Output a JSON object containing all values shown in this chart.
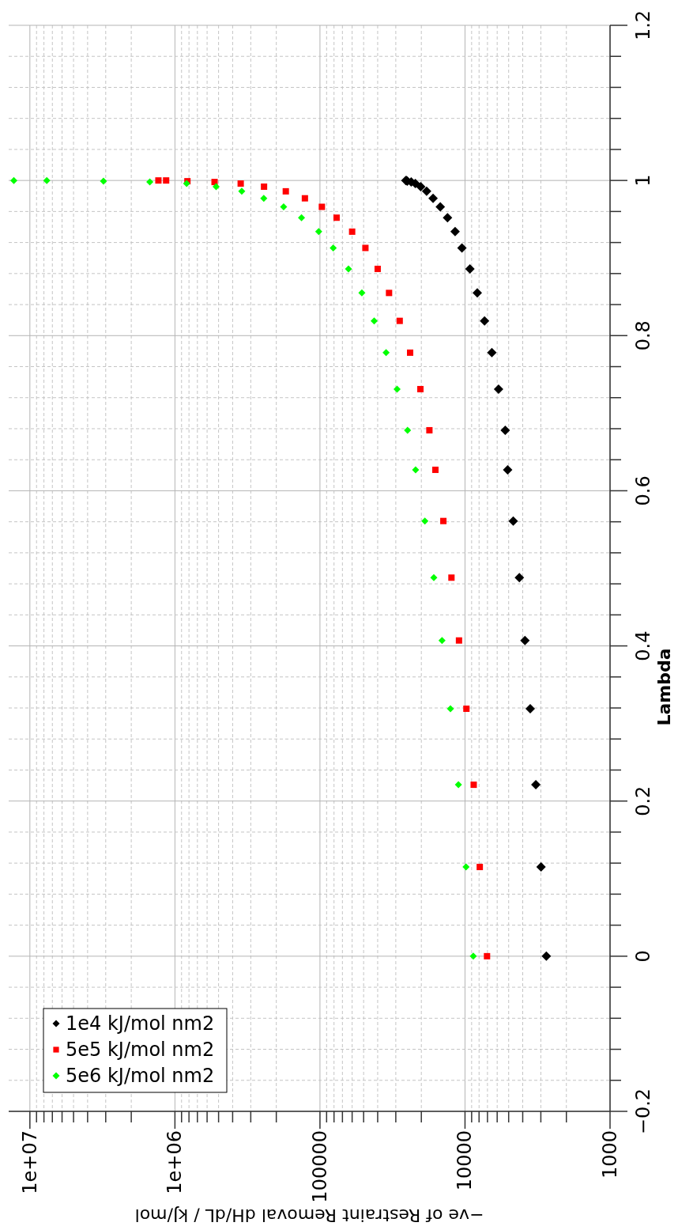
{
  "chart_data": {
    "type": "scatter",
    "xlabel": "−ve of Restraint Removal dH/dL / kJ/mol",
    "ylabel": "Lambda",
    "series": [
      {
        "name": "1e4 kJ/mol nm2",
        "color": "#000000",
        "marker": "diamond",
        "x": [
          25600,
          25300,
          25000,
          23500,
          22000,
          20200,
          18400,
          16600,
          14800,
          13200,
          11700,
          10500,
          9250,
          8230,
          7330,
          6530,
          5870,
          5280,
          5080,
          4650,
          4220,
          3860,
          3550,
          3250,
          2990,
          2750
        ],
        "values": [
          1.0,
          1.0,
          0.999,
          0.998,
          0.996,
          0.992,
          0.986,
          0.977,
          0.966,
          0.952,
          0.934,
          0.913,
          0.886,
          0.855,
          0.819,
          0.778,
          0.731,
          0.678,
          0.627,
          0.561,
          0.488,
          0.407,
          0.319,
          0.221,
          0.115,
          0
        ]
      },
      {
        "name": "5e5 kJ/mol nm2",
        "color": "#ff0000",
        "marker": "square",
        "x": [
          1300000,
          1150000,
          820000,
          533000,
          352000,
          243000,
          172000,
          127000,
          97000,
          76800,
          60000,
          48600,
          40000,
          33400,
          28200,
          23900,
          20300,
          17600,
          16000,
          14100,
          12400,
          11000,
          9780,
          8710,
          7910,
          7050
        ],
        "values": [
          1.0,
          1.0,
          0.999,
          0.998,
          0.996,
          0.992,
          0.986,
          0.977,
          0.966,
          0.952,
          0.934,
          0.913,
          0.886,
          0.855,
          0.819,
          0.778,
          0.731,
          0.678,
          0.627,
          0.561,
          0.488,
          0.407,
          0.319,
          0.221,
          0.115,
          0
        ]
      },
      {
        "name": "5e6 kJ/mol nm2",
        "color": "#00ff00",
        "marker": "diamond",
        "x": [
          12900000,
          7650000,
          3110000,
          1490000,
          830000,
          520000,
          346000,
          244000,
          178000,
          134000,
          102000,
          81000,
          63600,
          51400,
          42300,
          35000,
          29400,
          24900,
          21900,
          18900,
          16400,
          14400,
          12600,
          11100,
          9840,
          8770
        ],
        "values": [
          1.0,
          1.0,
          0.999,
          0.998,
          0.996,
          0.992,
          0.986,
          0.977,
          0.966,
          0.952,
          0.934,
          0.913,
          0.886,
          0.855,
          0.819,
          0.778,
          0.731,
          0.678,
          0.627,
          0.561,
          0.488,
          0.407,
          0.319,
          0.221,
          0.115,
          0
        ]
      }
    ],
    "ylim": [
      -0.2,
      1.2
    ],
    "yticks": [
      {
        "value": -0.2,
        "label": "−0.2"
      },
      {
        "value": -0.16,
        "label": null
      },
      {
        "value": -0.12,
        "label": null
      },
      {
        "value": -0.08,
        "label": null
      },
      {
        "value": -0.04,
        "label": null
      },
      0,
      {
        "value": 0.04,
        "label": null
      },
      {
        "value": 0.08,
        "label": null
      },
      {
        "value": 0.12,
        "label": null
      },
      {
        "value": 0.16,
        "label": null
      },
      0.2,
      {
        "value": 0.24,
        "label": null
      },
      {
        "value": 0.28,
        "label": null
      },
      {
        "value": 0.32,
        "label": null
      },
      {
        "value": 0.36,
        "label": null
      },
      0.4,
      {
        "value": 0.44,
        "label": null
      },
      {
        "value": 0.48,
        "label": null
      },
      {
        "value": 0.52,
        "label": null
      },
      {
        "value": 0.56,
        "label": null
      },
      0.6,
      {
        "value": 0.64,
        "label": null
      },
      {
        "value": 0.68,
        "label": null
      },
      {
        "value": 0.72,
        "label": null
      },
      {
        "value": 0.76,
        "label": null
      },
      0.8,
      {
        "value": 0.84,
        "label": null
      },
      {
        "value": 0.88,
        "label": null
      },
      {
        "value": 0.92,
        "label": null
      },
      {
        "value": 0.96,
        "label": null
      },
      1,
      {
        "value": 1.04,
        "label": null
      },
      {
        "value": 1.08,
        "label": null
      },
      {
        "value": 1.12,
        "label": null
      },
      {
        "value": 1.16,
        "label": null
      },
      1.2
    ],
    "xlim": [
      14000000,
      1000
    ],
    "xticks": [
      1000,
      {
        "value": 2000,
        "label": null
      },
      {
        "value": 3000,
        "label": null
      },
      {
        "value": 4000,
        "label": null
      },
      {
        "value": 5000,
        "label": null
      },
      {
        "value": 6000,
        "label": null
      },
      {
        "value": 7000,
        "label": null
      },
      {
        "value": 8000,
        "label": null
      },
      {
        "value": 9000,
        "label": null
      },
      10000,
      {
        "value": 20000,
        "label": null
      },
      {
        "value": 30000,
        "label": null
      },
      {
        "value": 40000,
        "label": null
      },
      {
        "value": 50000,
        "label": null
      },
      {
        "value": 60000,
        "label": null
      },
      {
        "value": 70000,
        "label": null
      },
      {
        "value": 80000,
        "label": null
      },
      {
        "value": 90000,
        "label": null
      },
      100000,
      {
        "value": 200000,
        "label": null
      },
      {
        "value": 300000,
        "label": null
      },
      {
        "value": 400000,
        "label": null
      },
      {
        "value": 500000,
        "label": null
      },
      {
        "value": 600000,
        "label": null
      },
      {
        "value": 700000,
        "label": null
      },
      {
        "value": 800000,
        "label": null
      },
      {
        "value": 900000,
        "label": null
      },
      {
        "value": 1000000,
        "label": "1e+06"
      },
      {
        "value": 2000000,
        "label": null
      },
      {
        "value": 3000000,
        "label": null
      },
      {
        "value": 4000000,
        "label": null
      },
      {
        "value": 5000000,
        "label": null
      },
      {
        "value": 6000000,
        "label": null
      },
      {
        "value": 7000000,
        "label": null
      },
      {
        "value": 8000000,
        "label": null
      },
      {
        "value": 9000000,
        "label": null
      },
      {
        "value": 10000000,
        "label": "1e+07"
      }
    ],
    "log": "x",
    "grid": true,
    "legend": "bottom left"
  }
}
